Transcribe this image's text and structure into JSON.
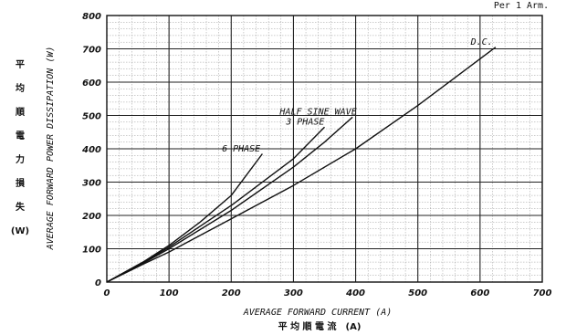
{
  "chart_data": {
    "type": "line",
    "note": "Per 1 Arm.",
    "xlabel": "AVERAGE FORWARD CURRENT (A)",
    "xlabel_jp": "平 均 順 電 流　(A)",
    "ylabel": "AVERAGE FORWARD POWER DISSIPATION (W)",
    "ylabel_jp": [
      "平",
      "均",
      "順",
      "電",
      "力",
      "損",
      "失",
      "(W)"
    ],
    "xlim": [
      0,
      700
    ],
    "ylim": [
      0,
      800
    ],
    "xticks": [
      0,
      100,
      200,
      300,
      400,
      500,
      600,
      700
    ],
    "yticks": [
      0,
      100,
      200,
      300,
      400,
      500,
      600,
      700,
      800
    ],
    "grid": true,
    "series": [
      {
        "name": "D.C.",
        "points": [
          [
            0,
            0
          ],
          [
            60,
            55
          ],
          [
            100,
            90
          ],
          [
            200,
            190
          ],
          [
            300,
            290
          ],
          [
            400,
            400
          ],
          [
            500,
            530
          ],
          [
            600,
            670
          ],
          [
            625,
            705
          ]
        ]
      },
      {
        "name": "HALF SINE WAVE",
        "points": [
          [
            0,
            0
          ],
          [
            60,
            58
          ],
          [
            100,
            100
          ],
          [
            200,
            215
          ],
          [
            300,
            345
          ],
          [
            350,
            420
          ],
          [
            395,
            495
          ]
        ]
      },
      {
        "name": "3 PHASE",
        "points": [
          [
            0,
            0
          ],
          [
            60,
            60
          ],
          [
            100,
            105
          ],
          [
            200,
            230
          ],
          [
            300,
            370
          ],
          [
            350,
            465
          ]
        ]
      },
      {
        "name": "6 PHASE",
        "points": [
          [
            0,
            0
          ],
          [
            60,
            62
          ],
          [
            100,
            110
          ],
          [
            150,
            180
          ],
          [
            200,
            260
          ],
          [
            250,
            385
          ]
        ]
      }
    ],
    "labels": [
      {
        "text": "D.C.",
        "x": 585,
        "y": 712
      },
      {
        "text": "HALF SINE WAVE",
        "x": 278,
        "y": 503
      },
      {
        "text": "3 PHASE",
        "x": 288,
        "y": 472
      },
      {
        "text": "6 PHASE",
        "x": 185,
        "y": 392
      }
    ]
  }
}
